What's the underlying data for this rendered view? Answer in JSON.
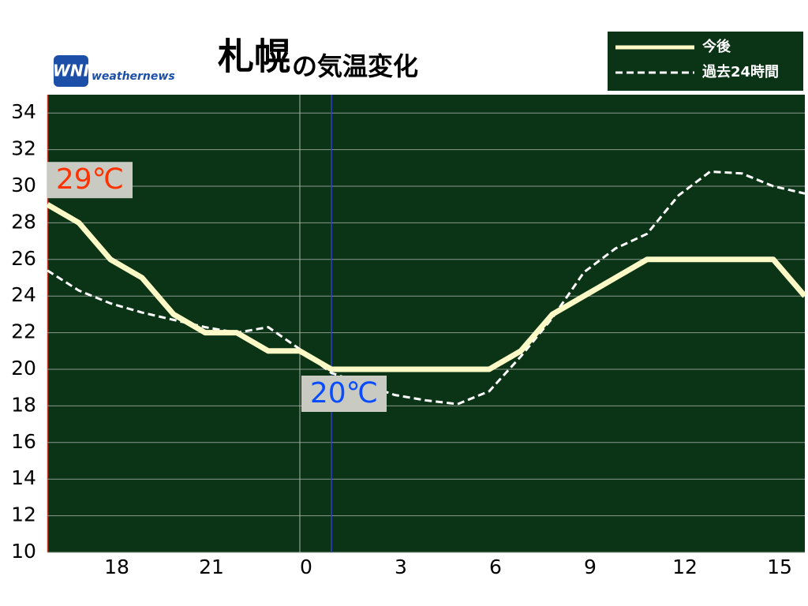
{
  "chart_data": {
    "type": "line",
    "title": "札幌",
    "subtitle": "の気温変化",
    "logo": "WNI",
    "brand": "weathernews",
    "x": [
      16,
      17,
      18,
      19,
      20,
      21,
      22,
      23,
      24,
      25,
      26,
      27,
      28,
      29,
      30,
      31,
      32,
      33,
      34,
      35,
      36,
      37,
      38,
      39,
      40
    ],
    "series": [
      {
        "name": "今後",
        "color": "#fdfac8",
        "dashed": false,
        "values": [
          29,
          28,
          26,
          25,
          23,
          22,
          22,
          21,
          21,
          20,
          20,
          20,
          20,
          20,
          20,
          21,
          23,
          24,
          25,
          26,
          26,
          26,
          26,
          26,
          24
        ]
      },
      {
        "name": "過去24時間",
        "color": "#ffffff",
        "dashed": true,
        "values": [
          25.4,
          24.3,
          23.6,
          23.1,
          22.7,
          22.3,
          22.0,
          22.3,
          21.1,
          19.8,
          19.2,
          18.6,
          18.3,
          18.1,
          18.8,
          20.7,
          22.8,
          25.3,
          26.6,
          27.4,
          29.5,
          30.8,
          30.7,
          30.0,
          29.6
        ]
      }
    ],
    "xlim": [
      16,
      40
    ],
    "xticks": [
      {
        "value": 18,
        "label": "18"
      },
      {
        "value": 21,
        "label": "21"
      },
      {
        "value": 24,
        "label": "0"
      },
      {
        "value": 27,
        "label": "3"
      },
      {
        "value": 30,
        "label": "6"
      },
      {
        "value": 33,
        "label": "9"
      },
      {
        "value": 36,
        "label": "12"
      },
      {
        "value": 39,
        "label": "15"
      }
    ],
    "ylim": [
      10,
      35
    ],
    "yticks": [
      10,
      12,
      14,
      16,
      18,
      20,
      22,
      24,
      26,
      28,
      30,
      32,
      34
    ],
    "grid": true,
    "day_line": 24,
    "now": 25,
    "annotations": [
      {
        "text": "29℃",
        "x": 16,
        "y": 29,
        "color": "#ff3300"
      },
      {
        "text": "20℃",
        "x": 25,
        "y": 20,
        "color": "#0a4cff"
      }
    ],
    "background": "#0b3315"
  }
}
